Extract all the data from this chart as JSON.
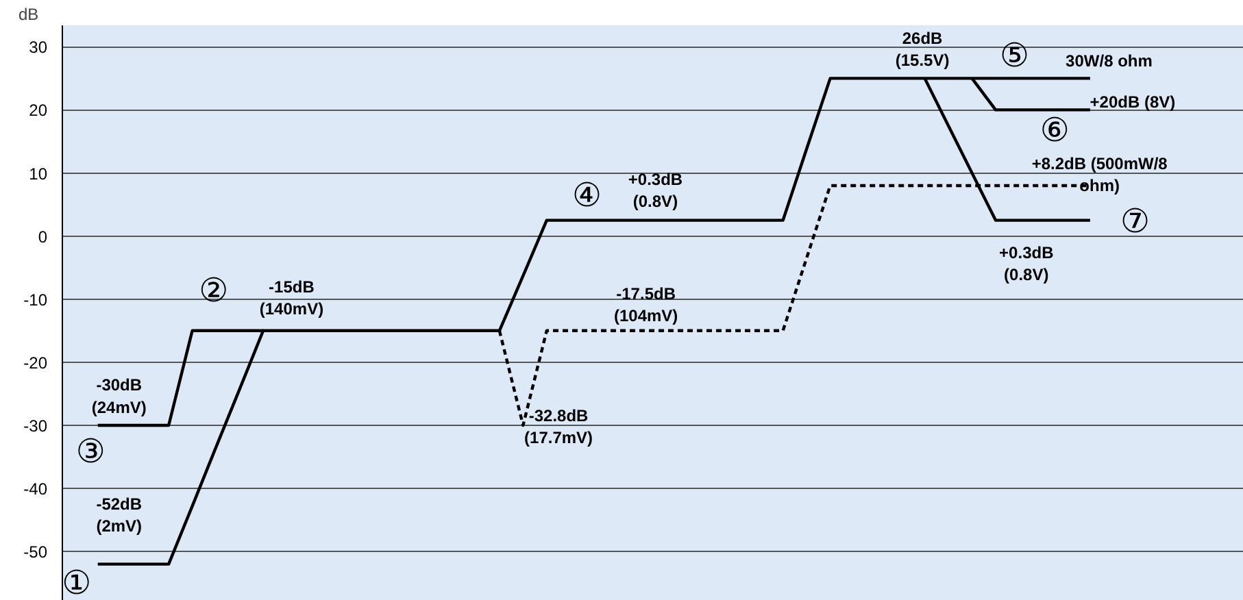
{
  "chart_data": {
    "type": "line",
    "ylabel": "dB",
    "ylim": [
      -57.8,
      33.4
    ],
    "yticks": [
      -50,
      -40,
      -30,
      -20,
      -10,
      0,
      10,
      20,
      30
    ],
    "grid": "y",
    "tick_labels": "y",
    "categories": [
      null,
      null,
      null,
      null,
      null,
      null,
      null,
      null,
      null,
      null,
      null,
      null,
      null,
      null,
      null,
      null,
      null,
      null,
      null,
      null,
      null,
      null,
      null,
      null,
      null,
      null,
      null,
      null,
      null,
      null,
      null,
      null,
      null,
      null,
      null,
      null,
      null,
      null,
      null,
      null,
      null,
      null,
      null,
      null,
      null,
      null,
      null,
      null,
      null,
      null
    ],
    "series": [
      {
        "color": "#000000",
        "line_style": "solid",
        "values": [
          null,
          -52,
          -52,
          -52,
          -52,
          -42.8,
          -33.5,
          -24.3,
          -15,
          -15,
          -15,
          -15,
          -15,
          -15,
          -15,
          -15,
          -15,
          -15,
          -15,
          -6.3,
          2.5,
          2.5,
          2.5,
          2.5,
          2.5,
          2.5,
          2.5,
          2.5,
          2.5,
          2.5,
          2.5,
          13.8,
          25,
          25,
          25,
          25,
          25,
          25,
          25,
          25,
          25,
          25,
          25,
          25,
          null,
          null,
          null,
          null,
          null,
          null
        ]
      },
      {
        "color": "#000000",
        "line_style": "solid",
        "values": [
          null,
          -30,
          -30,
          -30,
          -30,
          -15,
          -15,
          -15,
          -15,
          null,
          null,
          null,
          null,
          null,
          null,
          null,
          null,
          null,
          null,
          null,
          null,
          null,
          null,
          null,
          null,
          null,
          null,
          null,
          null,
          null,
          null,
          null,
          null,
          null,
          null,
          null,
          null,
          null,
          null,
          null,
          null,
          null,
          null,
          null,
          null,
          null,
          null,
          null,
          null,
          null
        ]
      },
      {
        "color": "#000000",
        "line_style": "solid",
        "values": [
          null,
          null,
          null,
          null,
          null,
          null,
          null,
          null,
          null,
          null,
          null,
          null,
          null,
          null,
          null,
          null,
          null,
          null,
          null,
          null,
          null,
          null,
          null,
          null,
          null,
          null,
          null,
          null,
          null,
          null,
          null,
          null,
          null,
          null,
          null,
          null,
          null,
          null,
          25,
          20,
          20,
          20,
          20,
          20,
          null,
          null,
          null,
          null,
          null,
          null
        ]
      },
      {
        "color": "#000000",
        "line_style": "solid",
        "values": [
          null,
          null,
          null,
          null,
          null,
          null,
          null,
          null,
          null,
          null,
          null,
          null,
          null,
          null,
          null,
          null,
          null,
          null,
          null,
          null,
          null,
          null,
          null,
          null,
          null,
          null,
          null,
          null,
          null,
          null,
          null,
          null,
          null,
          null,
          null,
          null,
          25,
          17.5,
          10,
          2.5,
          2.5,
          2.5,
          2.5,
          2.5,
          null,
          null,
          null,
          null,
          null,
          null
        ]
      },
      {
        "color": "#000000",
        "line_style": "dashed",
        "values": [
          null,
          null,
          null,
          null,
          null,
          null,
          null,
          null,
          null,
          null,
          null,
          null,
          null,
          null,
          null,
          null,
          null,
          null,
          -15,
          -30,
          -15,
          -15,
          -15,
          -15,
          -15,
          -15,
          -15,
          -15,
          -15,
          -15,
          -15,
          -3.5,
          8,
          8,
          8,
          8,
          8,
          8,
          8,
          8,
          8,
          8,
          8,
          8,
          null,
          null,
          null,
          null,
          null,
          null
        ]
      }
    ],
    "annotations": [
      "-52dB\n(2mV)",
      "-30dB\n(24mV)",
      "-15dB\n(140mV)",
      "-32.8dB\n(17.7mV)",
      "-17.5dB\n(104mV)",
      "+0.3dB\n(0.8V)",
      "26dB\n(15.5V)",
      "30W/8 ohm",
      "+20dB (8V)",
      "+8.2dB (500mW/8\nohm)",
      "+0.3dB\n(0.8V)",
      "①",
      "②",
      "③",
      "④",
      "⑤",
      "⑥",
      "⑦"
    ]
  }
}
